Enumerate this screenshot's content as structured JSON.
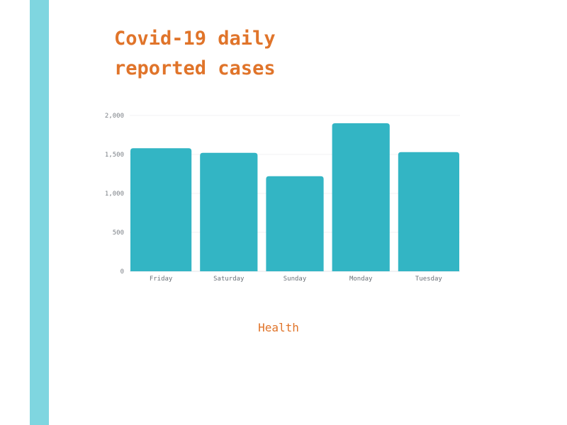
{
  "title": "Covid-19 daily reported cases",
  "footer": "Health",
  "colors": {
    "accent": "#e0742a",
    "bar": "#33b5c4",
    "stripe": "#7fd6e0"
  },
  "chart_data": {
    "type": "bar",
    "title": "Covid-19 daily reported cases",
    "xlabel": "",
    "ylabel": "",
    "categories": [
      "Friday",
      "Saturday",
      "Sunday",
      "Monday",
      "Tuesday"
    ],
    "values": [
      1580,
      1520,
      1220,
      1900,
      1530
    ],
    "ylim": [
      0,
      2000
    ],
    "yticks": [
      0,
      500,
      1000,
      1500,
      2000
    ],
    "ytick_labels": [
      "0",
      "500",
      "1,000",
      "1,500",
      "2,000"
    ],
    "grid": true,
    "legend": "none"
  }
}
